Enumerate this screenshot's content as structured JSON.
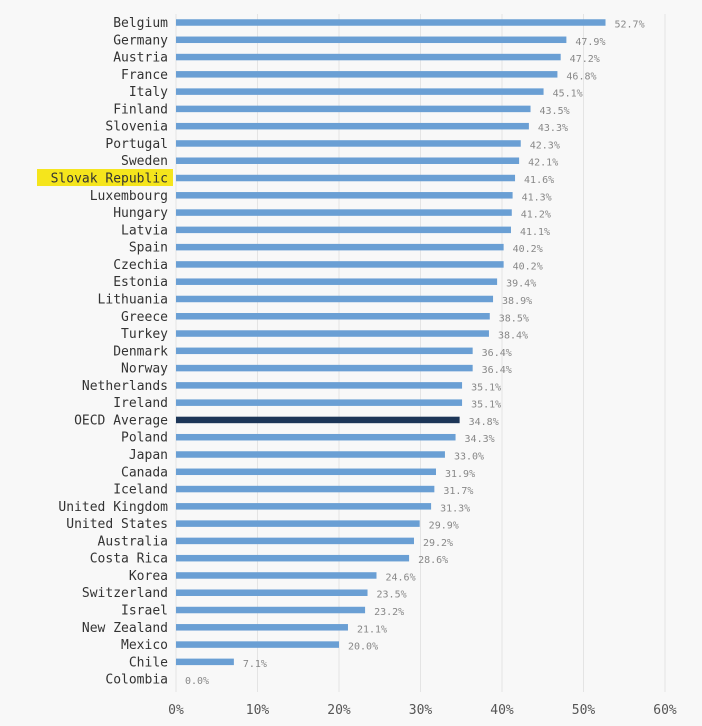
{
  "chart_data": {
    "type": "bar",
    "orientation": "horizontal",
    "categories": [
      "Belgium",
      "Germany",
      "Austria",
      "France",
      "Italy",
      "Finland",
      "Slovenia",
      "Portugal",
      "Sweden",
      "Slovak Republic",
      "Luxembourg",
      "Hungary",
      "Latvia",
      "Spain",
      "Czechia",
      "Estonia",
      "Lithuania",
      "Greece",
      "Turkey",
      "Denmark",
      "Norway",
      "Netherlands",
      "Ireland",
      "OECD Average",
      "Poland",
      "Japan",
      "Canada",
      "Iceland",
      "United Kingdom",
      "United States",
      "Australia",
      "Costa Rica",
      "Korea",
      "Switzerland",
      "Israel",
      "New Zealand",
      "Mexico",
      "Chile",
      "Colombia"
    ],
    "values": [
      52.7,
      47.9,
      47.2,
      46.8,
      45.1,
      43.5,
      43.3,
      42.3,
      42.1,
      41.6,
      41.3,
      41.2,
      41.1,
      40.2,
      40.2,
      39.4,
      38.9,
      38.5,
      38.4,
      36.4,
      36.4,
      35.1,
      35.1,
      34.8,
      34.3,
      33.0,
      31.9,
      31.7,
      31.3,
      29.9,
      29.2,
      28.6,
      24.6,
      23.5,
      23.2,
      21.1,
      20.0,
      7.1,
      0.0
    ],
    "value_labels": [
      "52.7%",
      "47.9%",
      "47.2%",
      "46.8%",
      "45.1%",
      "43.5%",
      "43.3%",
      "42.3%",
      "42.1%",
      "41.6%",
      "41.3%",
      "41.2%",
      "41.1%",
      "40.2%",
      "40.2%",
      "39.4%",
      "38.9%",
      "38.5%",
      "38.4%",
      "36.4%",
      "36.4%",
      "35.1%",
      "35.1%",
      "34.8%",
      "34.3%",
      "33.0%",
      "31.9%",
      "31.7%",
      "31.3%",
      "29.9%",
      "29.2%",
      "28.6%",
      "24.6%",
      "23.5%",
      "23.2%",
      "21.1%",
      "20.0%",
      "7.1%",
      "0.0%"
    ],
    "xlim": [
      0,
      60
    ],
    "xticks": [
      0,
      10,
      20,
      30,
      40,
      50,
      60
    ],
    "xtick_labels": [
      "0%",
      "10%",
      "20%",
      "30%",
      "40%",
      "50%",
      "60%"
    ],
    "highlight_label": "Slovak Republic",
    "average_label": "OECD Average",
    "grid": "vertical",
    "title": "",
    "xlabel": "",
    "ylabel": ""
  },
  "colors": {
    "bar": "#6a9fd4",
    "average_bar": "#1c3557",
    "highlight_background": "#f5e51c",
    "grid": "#e4e4e4"
  }
}
